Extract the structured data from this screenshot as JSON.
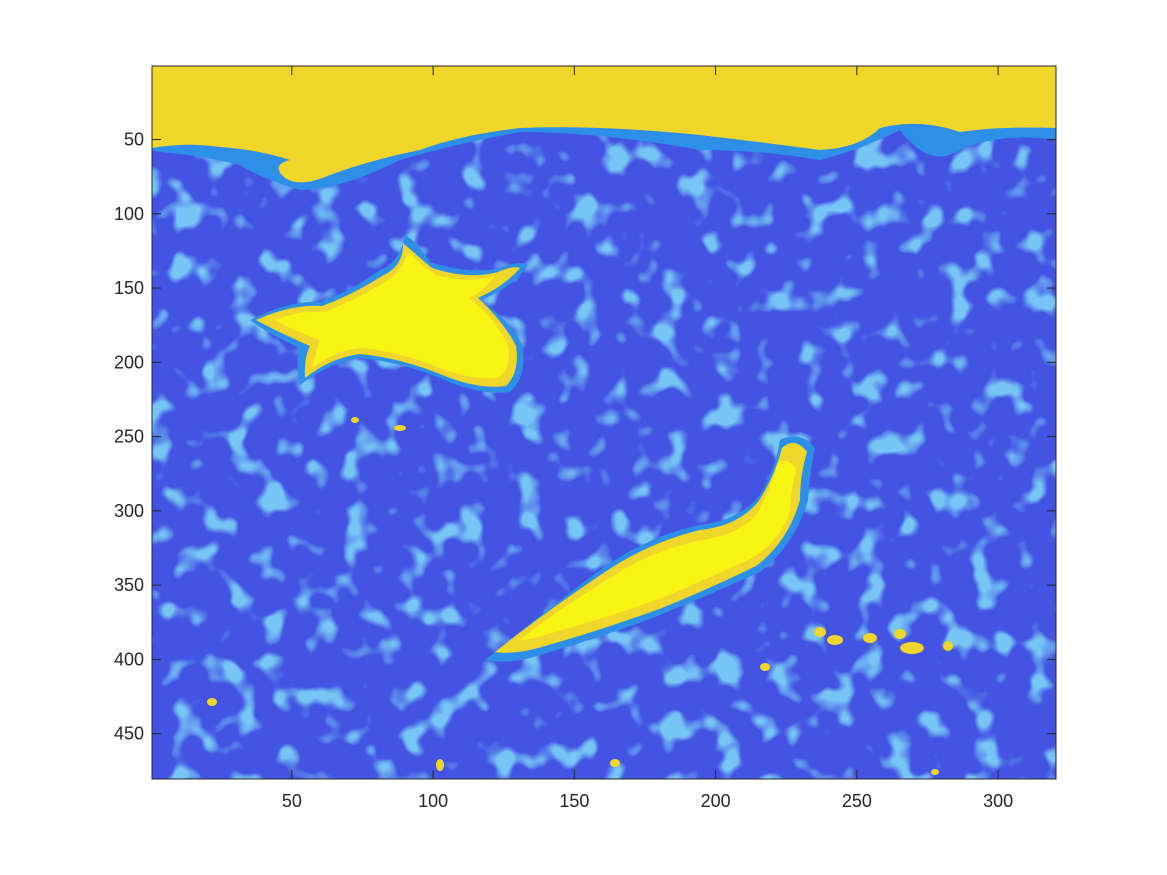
{
  "image_plot": {
    "x_ticks": [
      "50",
      "100",
      "150",
      "200",
      "250",
      "300"
    ],
    "y_ticks": [
      "50",
      "100",
      "150",
      "200",
      "250",
      "300",
      "350",
      "400",
      "450"
    ],
    "x_tick_values": [
      50,
      100,
      150,
      200,
      250,
      300
    ],
    "y_tick_values": [
      50,
      100,
      150,
      200,
      250,
      300,
      350,
      400,
      450
    ],
    "x_range": [
      0.5,
      320.5
    ],
    "y_range": [
      0.5,
      480.5
    ],
    "y_direction": "reversed",
    "colormap": "parula",
    "colors": {
      "background": "#4354E3",
      "low_mid": "#2E8FE8",
      "high": "#F0D62B",
      "peak": "#F8F514",
      "axis": "#262626"
    }
  }
}
